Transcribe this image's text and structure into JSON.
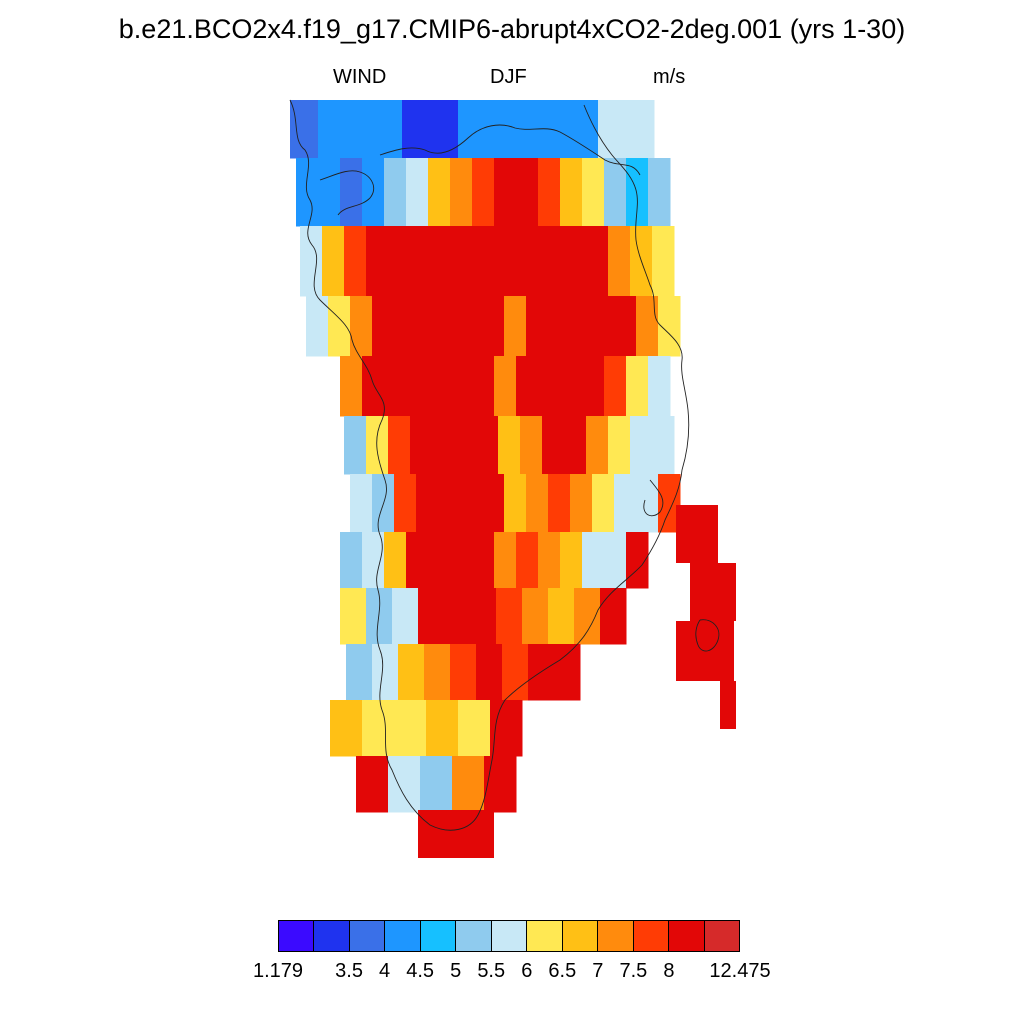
{
  "title": "b.e21.BCO2x4.f19_g17.CMIP6-abrupt4xCO2-2deg.001 (yrs 1-30)",
  "variable": "WIND",
  "season": "DJF",
  "units": "m/s",
  "colorbar": {
    "colors": [
      "#3b0aff",
      "#1f33ef",
      "#3a70e8",
      "#1e96ff",
      "#16c0ff",
      "#8fcbee",
      "#c8e8f6",
      "#ffe853",
      "#ffc015",
      "#ff8b0d",
      "#ff3c05",
      "#e20707",
      "#d62a2a"
    ],
    "tick_labels": [
      "1.179",
      "3.5",
      "4",
      "4.5",
      "5",
      "5.5",
      "6",
      "6.5",
      "7",
      "7.5",
      "8",
      "12.475"
    ]
  },
  "chart_data": {
    "type": "heatmap",
    "title": "b.e21.BCO2x4.f19_g17.CMIP6-abrupt4xCO2-2deg.001 (yrs 1-30)",
    "variable": "WIND",
    "season": "DJF",
    "units": "m/s",
    "scale_min": 1.179,
    "scale_max": 12.475,
    "level_boundaries": [
      3.5,
      4,
      4.5,
      5,
      5.5,
      6,
      6.5,
      7,
      7.5,
      8
    ],
    "rows": [
      [
        3.8,
        4.1,
        4.2,
        4.1,
        3.2,
        3.4,
        4.0,
        4.1,
        4.1,
        4.2,
        4.3,
        5.5,
        5.8
      ],
      [
        4.3,
        4.1,
        3.9,
        4.3,
        5.2,
        5.6,
        6.8,
        7.2,
        7.8,
        8.2,
        9.5,
        7.8,
        6.8,
        6.2,
        5.2,
        4.8,
        5.0
      ],
      [
        5.8,
        6.6,
        7.9,
        9.5,
        9.5,
        9.5,
        9.5,
        8.4,
        9.5,
        9.5,
        9.5,
        8.6,
        9.5,
        8.5,
        7.2,
        6.8,
        6.2
      ],
      [
        5.7,
        6.2,
        7.2,
        8.4,
        9.5,
        9.5,
        9.5,
        9.5,
        9.5,
        7.4,
        8.2,
        9.5,
        9.5,
        9.5,
        8.2,
        7.0,
        6.2
      ],
      [
        7.2,
        8.1,
        9.5,
        9.5,
        9.5,
        9.5,
        9.5,
        7.3,
        8.4,
        9.5,
        9.5,
        8.6,
        7.5,
        6.2,
        5.7
      ],
      [
        5.4,
        6.2,
        7.8,
        9.5,
        9.5,
        9.5,
        8.6,
        6.6,
        7.2,
        8.6,
        8.4,
        7.4,
        6.3,
        5.8,
        5.6
      ],
      [
        5.7,
        5.4,
        7.6,
        9.5,
        9.5,
        9.5,
        8.7,
        6.8,
        7.4,
        7.6,
        7.1,
        6.3,
        5.6,
        5.5,
        7.8
      ],
      [
        5.4,
        5.6,
        6.6,
        9.5,
        9.5,
        9.5,
        8.2,
        7.3,
        7.9,
        7.4,
        6.8,
        5.6,
        5.9,
        8.6
      ],
      [
        6.1,
        5.1,
        5.9,
        8.0,
        8.7,
        8.1,
        7.6,
        7.1,
        6.9,
        7.3,
        9.5
      ],
      [
        5.3,
        5.7,
        6.8,
        7.2,
        7.8,
        8.2,
        7.6,
        8.1,
        8.4
      ],
      [
        6.9,
        6.0,
        6.1,
        6.6,
        6.4,
        8.0
      ],
      [
        9.5,
        5.9,
        5.3,
        7.0,
        8.1
      ]
    ],
    "right_strip": [
      8.2,
      9.5,
      9.5,
      9.5
    ]
  }
}
